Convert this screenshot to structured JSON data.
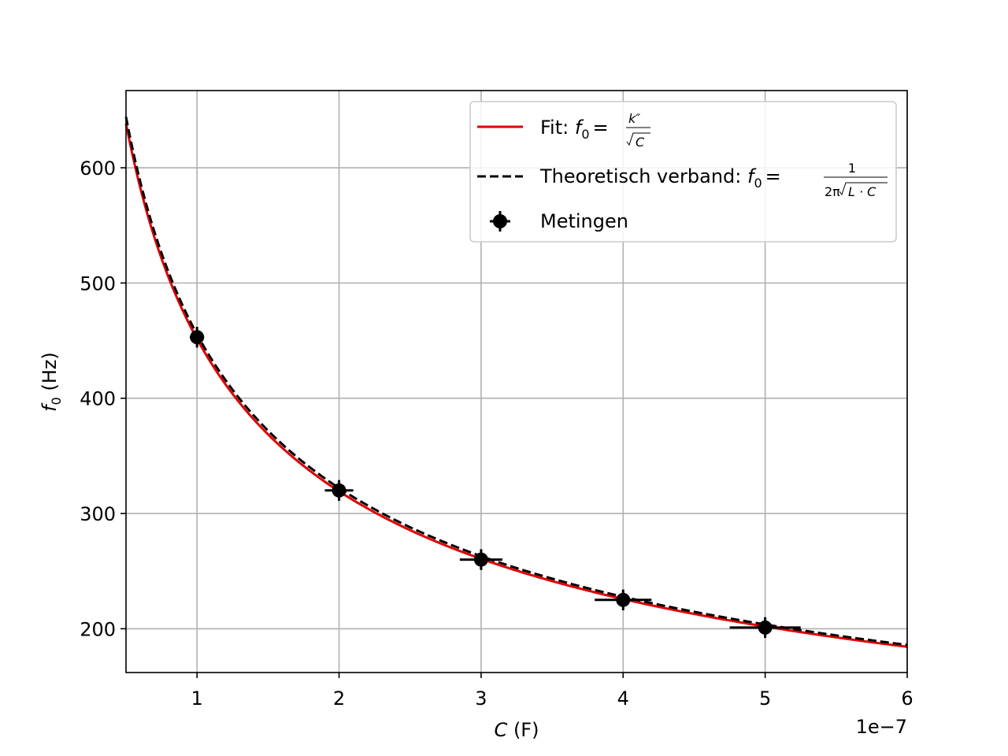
{
  "chart_data": {
    "type": "scatter",
    "xlabel_var": "C",
    "xlabel_unit": "(F)",
    "ylabel_var": "f",
    "ylabel_sub": "0",
    "ylabel_unit": "(Hz)",
    "x_offset_label": "1e−7",
    "x_scale": 1e-07,
    "xlim": [
      0.5,
      6
    ],
    "ylim": [
      162,
      667
    ],
    "x_ticks": [
      1,
      2,
      3,
      4,
      5,
      6
    ],
    "x_tick_labels": [
      "1",
      "2",
      "3",
      "4",
      "5",
      "6"
    ],
    "y_ticks": [
      200,
      300,
      400,
      500,
      600
    ],
    "y_tick_labels": [
      "200",
      "300",
      "400",
      "500",
      "600"
    ],
    "grid": true,
    "legend_position": "top-right",
    "colors": {
      "fit": "#e00000",
      "theory": "#000000",
      "measurements": "#000000",
      "grid": "#b0b0b0"
    },
    "series": [
      {
        "name": "Fit",
        "kind": "line",
        "style": "solid",
        "formula": "f0 = k'' / sqrt(C)",
        "k": 451.5
      },
      {
        "name": "Theoretisch verband",
        "kind": "line",
        "style": "dashed",
        "formula": "f0 = 1 / (2π·sqrt(L·C))",
        "k": 455.5
      },
      {
        "name": "Metingen",
        "kind": "errorbar",
        "x": [
          1,
          2,
          3,
          4,
          5
        ],
        "y": [
          453,
          320,
          260,
          225,
          201
        ],
        "x_err": [
          0.05,
          0.1,
          0.15,
          0.2,
          0.25
        ],
        "y_err": [
          9,
          9,
          9,
          9,
          9
        ]
      }
    ],
    "legend": [
      {
        "label": "Fit: ",
        "math_lhs_var": "f",
        "math_lhs_sub": "0",
        "math_eq": "=",
        "num": "k″",
        "den": "C"
      },
      {
        "label": "Theoretisch verband: ",
        "math_lhs_var": "f",
        "math_lhs_sub": "0",
        "math_eq": "=",
        "num": "1",
        "den_prefix": "2π",
        "den": "L · C"
      },
      {
        "label": "Metingen"
      }
    ]
  }
}
